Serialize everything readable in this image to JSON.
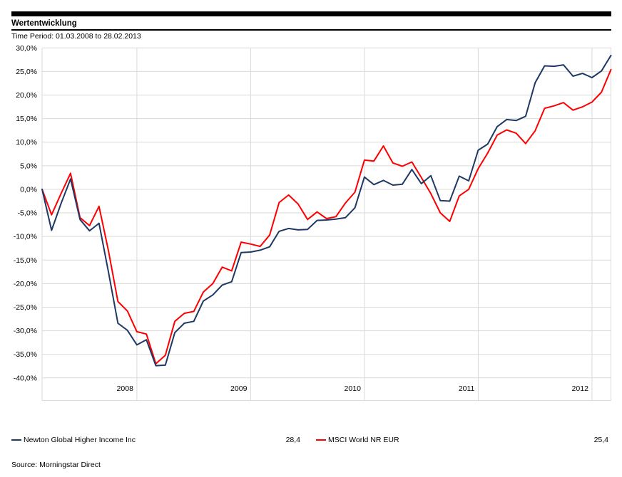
{
  "header": {
    "title": "Wertentwicklung",
    "time_period": "Time Period: 01.03.2008 to 28.02.2013"
  },
  "legend": [
    {
      "id": "newton",
      "label": "Newton Global Higher Income Inc",
      "value": "28,4",
      "color": "#1f3864"
    },
    {
      "id": "msci",
      "label": "MSCI World NR EUR",
      "value": "25,4",
      "color": "#ff0000"
    }
  ],
  "source": "Source: Morningstar Direct",
  "chart_data": {
    "type": "line",
    "title": "Wertentwicklung",
    "xlabel": "",
    "ylabel": "",
    "ylim": [
      -40,
      30
    ],
    "y_step": 5,
    "grid": true,
    "legend_position": "bottom",
    "grid_color": "#d9d9d9",
    "text_color": "#000000",
    "y_axis": {
      "tick_labels": [
        "30,0%",
        "25,0%",
        "20,0%",
        "15,0%",
        "10,0%",
        "5,0%",
        "0,0%",
        "-5,0%",
        "-10,0%",
        "-15,0%",
        "-20,0%",
        "-25,0%",
        "-30,0%",
        "-35,0%",
        "-40,0%"
      ]
    },
    "x_axis": {
      "year_ticks": [
        {
          "label": "2008",
          "month_index": 10
        },
        {
          "label": "2009",
          "month_index": 22
        },
        {
          "label": "2010",
          "month_index": 34
        },
        {
          "label": "2011",
          "month_index": 46
        },
        {
          "label": "2012",
          "month_index": 58
        }
      ]
    },
    "x": [
      "2008-02",
      "2008-03",
      "2008-04",
      "2008-05",
      "2008-06",
      "2008-07",
      "2008-08",
      "2008-09",
      "2008-10",
      "2008-11",
      "2008-12",
      "2009-01",
      "2009-02",
      "2009-03",
      "2009-04",
      "2009-05",
      "2009-06",
      "2009-07",
      "2009-08",
      "2009-09",
      "2009-10",
      "2009-11",
      "2009-12",
      "2010-01",
      "2010-02",
      "2010-03",
      "2010-04",
      "2010-05",
      "2010-06",
      "2010-07",
      "2010-08",
      "2010-09",
      "2010-10",
      "2010-11",
      "2010-12",
      "2011-01",
      "2011-02",
      "2011-03",
      "2011-04",
      "2011-05",
      "2011-06",
      "2011-07",
      "2011-08",
      "2011-09",
      "2011-10",
      "2011-11",
      "2011-12",
      "2012-01",
      "2012-02",
      "2012-03",
      "2012-04",
      "2012-05",
      "2012-06",
      "2012-07",
      "2012-08",
      "2012-09",
      "2012-10",
      "2012-11",
      "2012-12",
      "2013-01",
      "2013-02"
    ],
    "series": [
      {
        "id": "newton",
        "name": "Newton Global Higher Income Inc",
        "color": "#1f3864",
        "final_value_label": "28,4",
        "values": [
          0.0,
          -8.7,
          -3.0,
          2.2,
          -6.4,
          -8.8,
          -7.2,
          -17.5,
          -28.4,
          -29.9,
          -33.0,
          -31.9,
          -37.4,
          -37.3,
          -30.4,
          -28.4,
          -28.0,
          -23.7,
          -22.4,
          -20.3,
          -19.6,
          -13.4,
          -13.3,
          -12.9,
          -12.2,
          -8.9,
          -8.3,
          -8.6,
          -8.5,
          -6.6,
          -6.5,
          -6.3,
          -6.0,
          -3.9,
          2.6,
          1.0,
          1.9,
          0.9,
          1.1,
          4.2,
          1.2,
          2.9,
          -2.4,
          -2.5,
          2.8,
          1.8,
          8.3,
          9.6,
          13.3,
          14.8,
          14.6,
          15.5,
          22.6,
          26.2,
          26.1,
          26.4,
          24.0,
          24.6,
          23.7,
          25.1,
          28.4
        ]
      },
      {
        "id": "msci",
        "name": "MSCI World NR EUR",
        "color": "#ff0000",
        "final_value_label": "25,4",
        "values": [
          0.0,
          -5.4,
          -0.9,
          3.4,
          -6.0,
          -7.7,
          -3.6,
          -13.0,
          -23.8,
          -25.8,
          -30.2,
          -30.7,
          -37.0,
          -35.2,
          -28.0,
          -26.3,
          -25.9,
          -21.8,
          -20.0,
          -16.5,
          -17.3,
          -11.2,
          -11.6,
          -12.1,
          -9.7,
          -2.8,
          -1.2,
          -3.1,
          -6.4,
          -4.8,
          -6.2,
          -5.8,
          -2.9,
          -0.6,
          6.2,
          6.0,
          9.2,
          5.6,
          4.9,
          5.8,
          2.5,
          -0.9,
          -5.0,
          -6.8,
          -1.4,
          0.0,
          4.4,
          7.7,
          11.5,
          12.6,
          11.9,
          9.7,
          12.4,
          17.2,
          17.7,
          18.4,
          16.8,
          17.5,
          18.5,
          20.6,
          25.4
        ]
      }
    ]
  }
}
